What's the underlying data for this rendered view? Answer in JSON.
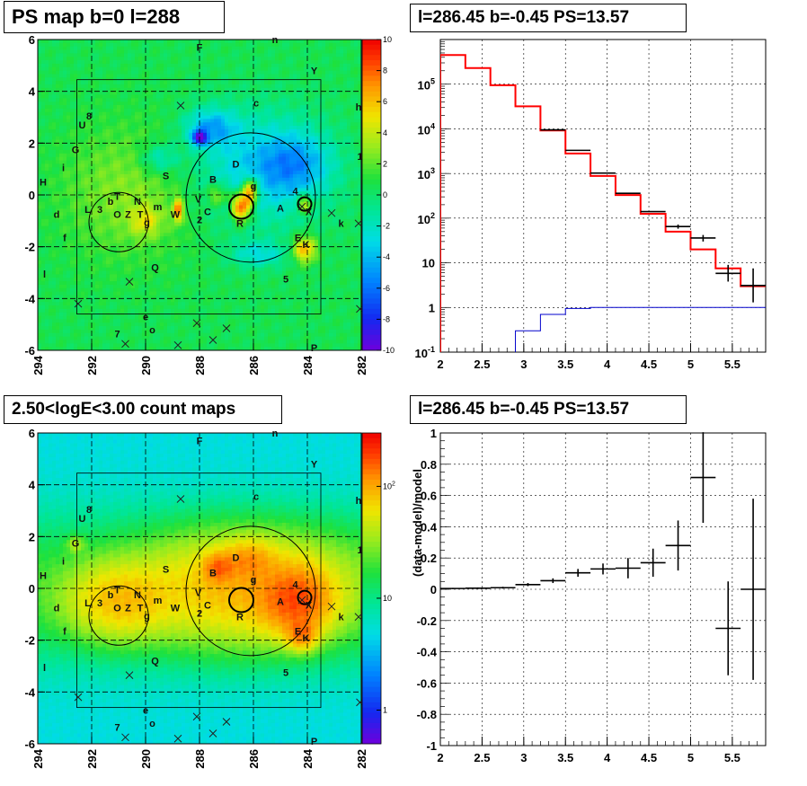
{
  "titles": {
    "ps_map": "PS map b=0 l=288",
    "spectrum": "l=286.45 b=-0.45 PS=13.57",
    "count_map": "2.50<logE<3.00 count maps",
    "residual": "l=286.45 b=-0.45 PS=13.57"
  },
  "colors": {
    "data": "#000000",
    "model": "#ff0000",
    "point_source": "#0000cc",
    "grid": "#000000"
  },
  "chart_data": [
    {
      "name": "ps-map",
      "type": "heatmap",
      "title": "PS map b=0 l=288",
      "x_ticks": [
        "294",
        "292",
        "290",
        "288",
        "286",
        "284",
        "282"
      ],
      "y_ticks": [
        "6",
        "4",
        "2",
        "0",
        "-2",
        "-4",
        "-6"
      ],
      "xlim": [
        294,
        282
      ],
      "ylim": [
        -6,
        6
      ],
      "z_ticks": [
        "10",
        "8",
        "6",
        "4",
        "2",
        "0",
        "-2",
        "-4",
        "-6",
        "-8",
        "-10"
      ],
      "zlim": [
        -10,
        10
      ],
      "scale": "linear",
      "grid": true,
      "circles": [
        {
          "l": 291.0,
          "b": -1.05,
          "r": 1.1
        },
        {
          "l": 286.1,
          "b": -0.1,
          "r": 2.4
        },
        {
          "l": 286.45,
          "b": -0.45,
          "r": 0.45
        },
        {
          "l": 284.1,
          "b": -0.35,
          "r": 0.25
        }
      ],
      "box": {
        "l1": 292.55,
        "l2": 283.5,
        "b1": -4.6,
        "b2": 4.45
      },
      "crosses": [
        {
          "l": 288.7,
          "b": 3.45
        },
        {
          "l": 283.1,
          "b": -0.7
        },
        {
          "l": 282.1,
          "b": -1.1
        },
        {
          "l": 292.5,
          "b": -4.2
        },
        {
          "l": 290.6,
          "b": -3.35
        },
        {
          "l": 288.1,
          "b": -4.95
        },
        {
          "l": 287.0,
          "b": -5.15
        },
        {
          "l": 287.5,
          "b": -5.6
        },
        {
          "l": 288.8,
          "b": -5.8
        },
        {
          "l": 290.75,
          "b": -5.75
        },
        {
          "l": 282.05,
          "b": -4.4
        },
        {
          "l": 284.2,
          "b": -0.45
        }
      ],
      "labels": [
        {
          "t": "F",
          "l": 288.0,
          "b": 5.7
        },
        {
          "t": "n",
          "l": 285.2,
          "b": 6.0
        },
        {
          "t": "Y",
          "l": 283.75,
          "b": 4.8
        },
        {
          "t": "8",
          "l": 292.1,
          "b": 3.05
        },
        {
          "t": "U",
          "l": 292.35,
          "b": 2.7
        },
        {
          "t": "c",
          "l": 285.9,
          "b": 3.55
        },
        {
          "t": "h",
          "l": 282.1,
          "b": 3.4
        },
        {
          "t": "G",
          "l": 292.6,
          "b": 1.75
        },
        {
          "t": "i",
          "l": 293.05,
          "b": 1.05
        },
        {
          "t": "D",
          "l": 286.65,
          "b": 1.2
        },
        {
          "t": "1",
          "l": 282.05,
          "b": 1.5
        },
        {
          "t": "S",
          "l": 289.25,
          "b": 0.75
        },
        {
          "t": "B",
          "l": 287.5,
          "b": 0.6
        },
        {
          "t": "H",
          "l": 293.8,
          "b": 0.5
        },
        {
          "t": "g",
          "l": 286.0,
          "b": 0.35
        },
        {
          "t": "T",
          "l": 291.05,
          "b": -0.05
        },
        {
          "t": "b",
          "l": 291.3,
          "b": -0.25
        },
        {
          "t": "N",
          "l": 290.3,
          "b": -0.25
        },
        {
          "t": "m",
          "l": 289.55,
          "b": -0.45
        },
        {
          "t": "V",
          "l": 288.05,
          "b": -0.15
        },
        {
          "t": "4",
          "l": 284.45,
          "b": 0.15
        },
        {
          "t": "L",
          "l": 292.15,
          "b": -0.55
        },
        {
          "t": "3",
          "l": 291.7,
          "b": -0.55
        },
        {
          "t": "A",
          "l": 285.0,
          "b": -0.5
        },
        {
          "t": "W",
          "l": 288.9,
          "b": -0.75
        },
        {
          "t": "C",
          "l": 287.7,
          "b": -0.65
        },
        {
          "t": "X",
          "l": 283.95,
          "b": -0.65
        },
        {
          "t": "d",
          "l": 293.3,
          "b": -0.75
        },
        {
          "t": "O",
          "l": 291.05,
          "b": -0.75
        },
        {
          "t": "Z",
          "l": 290.65,
          "b": -0.75
        },
        {
          "t": "T",
          "l": 290.2,
          "b": -0.75
        },
        {
          "t": "2",
          "l": 288.0,
          "b": -0.95
        },
        {
          "t": "g",
          "l": 289.95,
          "b": -1.05
        },
        {
          "t": "R",
          "l": 286.5,
          "b": -1.1
        },
        {
          "t": "k",
          "l": 282.75,
          "b": -1.1
        },
        {
          "t": "f",
          "l": 293.0,
          "b": -1.65
        },
        {
          "t": "E",
          "l": 284.35,
          "b": -1.65
        },
        {
          "t": "K",
          "l": 284.05,
          "b": -1.9
        },
        {
          "t": "l",
          "l": 293.75,
          "b": -3.05
        },
        {
          "t": "Q",
          "l": 289.65,
          "b": -2.8
        },
        {
          "t": "5",
          "l": 284.8,
          "b": -3.25
        },
        {
          "t": "e",
          "l": 290.0,
          "b": -4.7
        },
        {
          "t": "o",
          "l": 289.75,
          "b": -5.2
        },
        {
          "t": "7",
          "l": 291.05,
          "b": -5.35
        },
        {
          "t": "P",
          "l": 283.75,
          "b": -5.9
        }
      ]
    },
    {
      "name": "spectrum",
      "type": "line",
      "title": "l=286.45 b=-0.45 PS=13.57",
      "xlim": [
        2,
        5.9
      ],
      "ylim": [
        0.1,
        1000000
      ],
      "yscale": "log",
      "x_ticks": [
        "2",
        "2.5",
        "3",
        "3.5",
        "4",
        "4.5",
        "5",
        "5.5"
      ],
      "y_ticks": [
        "10",
        "1",
        "10"
      ],
      "y_ticks_exp": [
        {
          "base": "10",
          "exp": "5",
          "v": 100000
        },
        {
          "base": "10",
          "exp": "4",
          "v": 10000
        },
        {
          "base": "10",
          "exp": "3",
          "v": 1000
        },
        {
          "base": "10",
          "exp": "2",
          "v": 100
        },
        {
          "base": "10",
          "exp": "-1",
          "v": 0.1
        }
      ],
      "y_ticks_plain": [
        {
          "t": "10",
          "v": 10
        },
        {
          "t": "1",
          "v": 1
        }
      ],
      "grid": true,
      "bin_edges": [
        2.0,
        2.3,
        2.6,
        2.9,
        3.2,
        3.5,
        3.8,
        4.1,
        4.4,
        4.7,
        5.0,
        5.3,
        5.6,
        5.9
      ],
      "series": [
        {
          "values": [
            450000,
            230000,
            95000,
            32000,
            9200,
            2800,
            880,
            330,
            125,
            50,
            20,
            7.5,
            3.0
          ]
        },
        {
          "values": [
            null,
            null,
            null,
            0.3,
            0.7,
            0.95,
            1.0,
            1.0,
            1.0,
            1.0,
            1.0,
            1.0,
            1.0
          ]
        },
        {
          "points": [
            {
              "x": 3.35,
              "y": 9500
            },
            {
              "x": 3.65,
              "y": 3300
            },
            {
              "x": 3.95,
              "y": 1020
            },
            {
              "x": 4.25,
              "y": 360
            },
            {
              "x": 4.55,
              "y": 140
            },
            {
              "x": 4.85,
              "y": 65,
              "lo": 58,
              "hi": 72
            },
            {
              "x": 5.15,
              "y": 36,
              "lo": 30,
              "hi": 42
            },
            {
              "x": 5.45,
              "y": 5.8,
              "lo": 3.8,
              "hi": 9.0
            },
            {
              "x": 5.75,
              "y": 3.1,
              "lo": 1.3,
              "hi": 7.5
            }
          ]
        }
      ]
    },
    {
      "name": "count-map",
      "type": "heatmap",
      "title": "2.50<logE<3.00 count maps",
      "x_ticks": [
        "294",
        "292",
        "290",
        "288",
        "286",
        "284",
        "282"
      ],
      "y_ticks": [
        "6",
        "4",
        "2",
        "0",
        "-2",
        "-4",
        "-6"
      ],
      "xlim": [
        294,
        282
      ],
      "ylim": [
        -6,
        6
      ],
      "zscale": "log",
      "zlim": [
        0.5,
        300
      ],
      "z_ticks": [
        {
          "t": "10",
          "exp": "2",
          "v": 100
        },
        {
          "t": "10",
          "v": 10
        },
        {
          "t": "1",
          "v": 1
        }
      ],
      "grid": true
    },
    {
      "name": "residual",
      "type": "line",
      "title": "l=286.45 b=-0.45 PS=13.57",
      "ylabel": "(data-model)/model",
      "xlim": [
        2,
        5.9
      ],
      "ylim": [
        -1,
        1
      ],
      "x_ticks": [
        "2",
        "2.5",
        "3",
        "3.5",
        "4",
        "4.5",
        "5",
        "5.5"
      ],
      "y_ticks": [
        "1",
        "0.8",
        "0.6",
        "0.4",
        "0.2",
        "0",
        "-0.2",
        "-0.4",
        "-0.6",
        "-0.8",
        "-1"
      ],
      "grid": true,
      "series": [
        {
          "points": [
            {
              "x": 2.15,
              "y": 0.005,
              "xe": 0.15,
              "ye": 0.004
            },
            {
              "x": 2.45,
              "y": 0.007,
              "xe": 0.15,
              "ye": 0.005
            },
            {
              "x": 2.75,
              "y": 0.01,
              "xe": 0.15,
              "ye": 0.006
            },
            {
              "x": 3.05,
              "y": 0.03,
              "xe": 0.15,
              "ye": 0.01
            },
            {
              "x": 3.35,
              "y": 0.055,
              "xe": 0.15,
              "ye": 0.015
            },
            {
              "x": 3.65,
              "y": 0.105,
              "xe": 0.15,
              "ye": 0.025
            },
            {
              "x": 3.95,
              "y": 0.13,
              "xe": 0.15,
              "ye": 0.035
            },
            {
              "x": 4.25,
              "y": 0.135,
              "xe": 0.15,
              "ye": 0.065
            },
            {
              "x": 4.55,
              "y": 0.17,
              "xe": 0.15,
              "ye": 0.09
            },
            {
              "x": 4.85,
              "y": 0.28,
              "xe": 0.15,
              "ye": 0.16
            },
            {
              "x": 5.15,
              "y": 0.715,
              "xe": 0.15,
              "ye": 0.29
            },
            {
              "x": 5.45,
              "y": -0.25,
              "xe": 0.15,
              "ye": 0.3
            },
            {
              "x": 5.75,
              "y": 0.0,
              "xe": 0.15,
              "ye": 0.58
            }
          ]
        }
      ]
    }
  ]
}
